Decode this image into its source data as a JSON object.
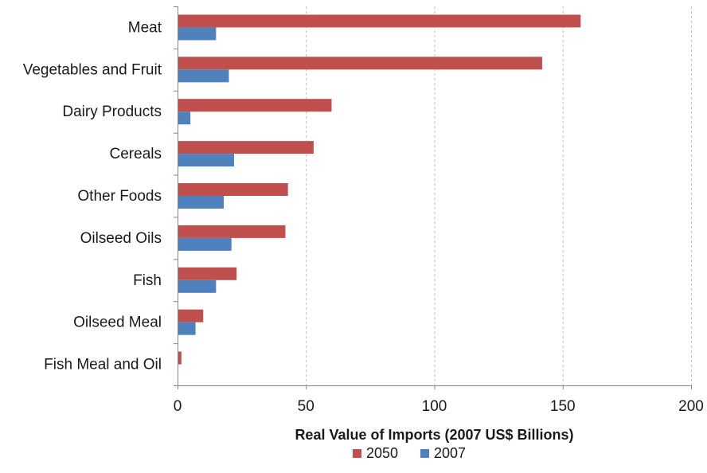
{
  "chart_data": {
    "type": "bar",
    "orientation": "horizontal",
    "categories": [
      "Meat",
      "Vegetables and Fruit",
      "Dairy Products",
      "Cereals",
      "Other Foods",
      "Oilseed Oils",
      "Fish",
      "Oilseed Meal",
      "Fish Meal and Oil"
    ],
    "series": [
      {
        "name": "2050",
        "color": "#c0504d",
        "values": [
          157,
          142,
          60,
          53,
          43,
          42,
          23,
          10,
          1.5
        ]
      },
      {
        "name": "2007",
        "color": "#4f81bd",
        "values": [
          15,
          20,
          5,
          22,
          18,
          21,
          15,
          7,
          0
        ]
      }
    ],
    "xlabel": "Real Value of Imports (2007 US$ Billions)",
    "xlim": [
      0,
      200
    ],
    "xticks": [
      "0",
      "50",
      "100",
      "150",
      "200"
    ],
    "xtick_values": [
      0,
      50,
      100,
      150,
      200
    ],
    "grid": "vertical dashed",
    "legend_position": "bottom",
    "colors": {
      "gridline": "#bfbfbf",
      "axis": "#868686"
    }
  }
}
